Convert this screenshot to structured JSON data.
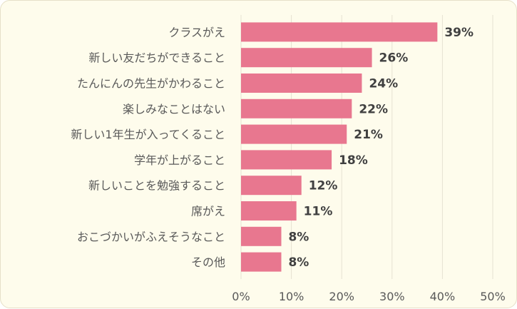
{
  "chart_data": {
    "type": "bar",
    "orientation": "horizontal",
    "categories": [
      "クラスがえ",
      "新しい友だちができること",
      "たんにんの先生がかわること",
      "楽しみなことはない",
      "新しい1年生が入ってくること",
      "学年が上がること",
      "新しいことを勉強すること",
      "席がえ",
      "おこづかいがふえそうなこと",
      "その他"
    ],
    "values": [
      39,
      26,
      24,
      22,
      21,
      18,
      12,
      11,
      8,
      8
    ],
    "value_labels": [
      "39%",
      "26%",
      "24%",
      "22%",
      "21%",
      "18%",
      "12%",
      "11%",
      "8%",
      "8%"
    ],
    "xlim": [
      0,
      50
    ],
    "xticks": [
      0,
      10,
      20,
      30,
      40,
      50
    ],
    "xtick_labels": [
      "0%",
      "10%",
      "20%",
      "30%",
      "40%",
      "50%"
    ],
    "grid": true,
    "bar_color": "#e8778f",
    "background_color": "#fefcec"
  }
}
